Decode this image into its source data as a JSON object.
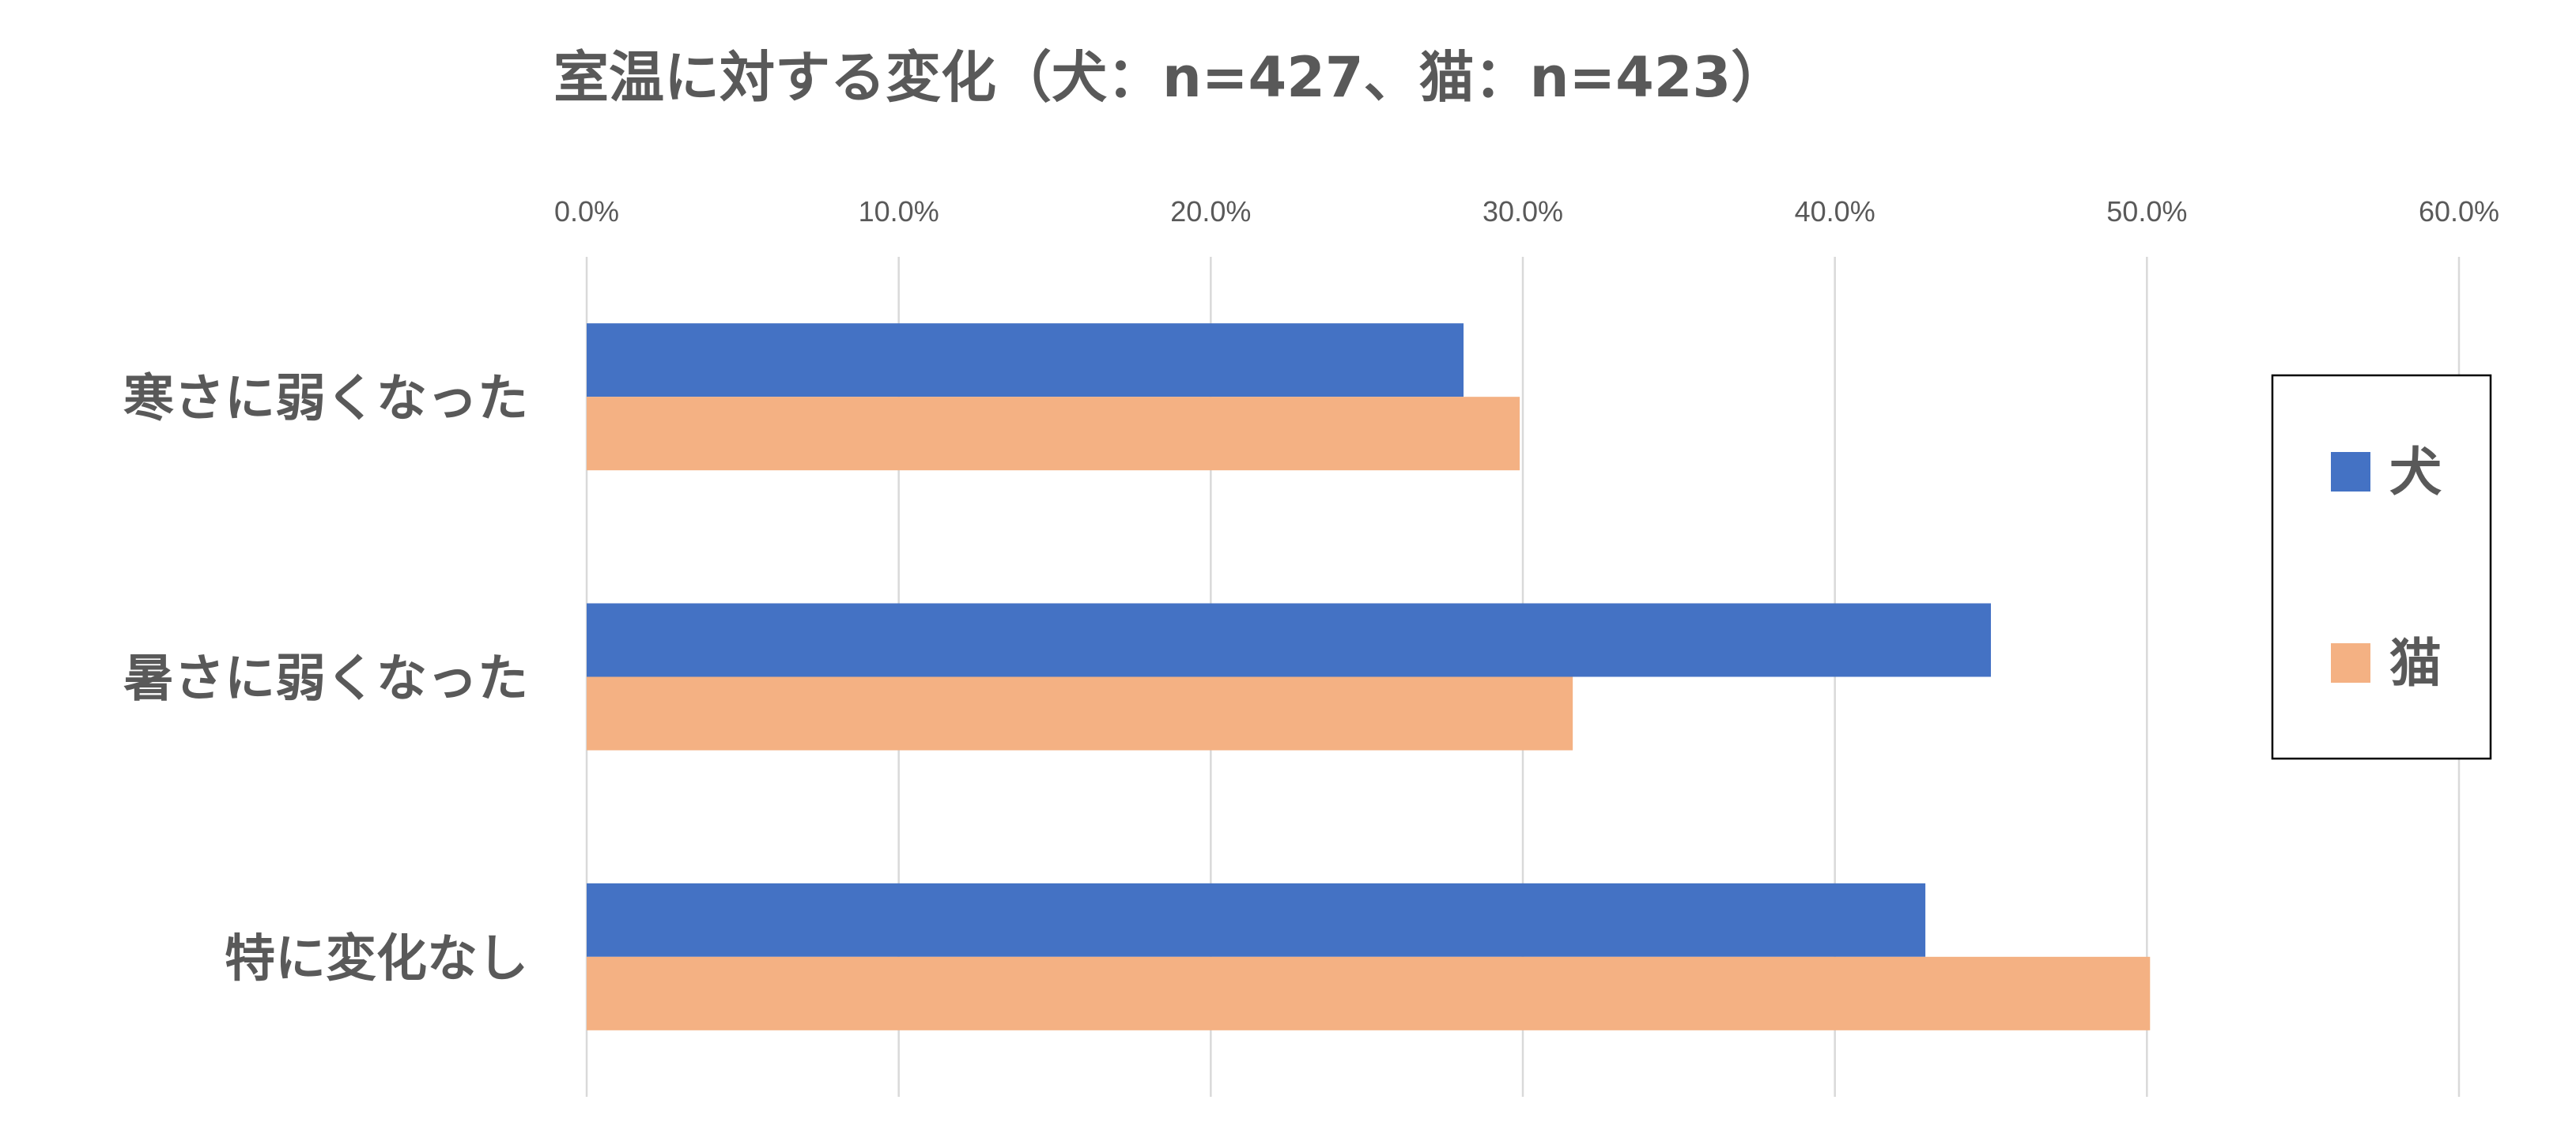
{
  "chart_data": {
    "type": "bar",
    "orientation": "horizontal",
    "title": "室温に対する変化（犬：n=427、猫：n=423）",
    "categories": [
      "寒さに弱くなった",
      "暑さに弱くなった",
      "特に変化なし"
    ],
    "series": [
      {
        "name": "犬",
        "color": "#4472C4",
        "values": [
          28.1,
          45.0,
          42.9
        ]
      },
      {
        "name": "猫",
        "color": "#F4B183",
        "values": [
          29.9,
          31.6,
          50.1
        ]
      }
    ],
    "xlim": [
      0,
      60
    ],
    "ticks": [
      "0.0%",
      "10.0%",
      "20.0%",
      "30.0%",
      "40.0%",
      "50.0%",
      "60.0%"
    ],
    "grid": true,
    "legend_position": "right",
    "xlabel": "",
    "ylabel": ""
  }
}
